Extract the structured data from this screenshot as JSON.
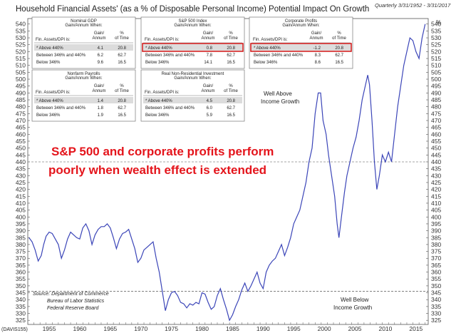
{
  "title": "Household Financial Assets' (as a % of Disposable Personal Income) Potential Impact On Growth",
  "subtitle": "Quarterly 3/31/1952 - 3/31/2017",
  "units_label": "%",
  "footer_tag": "(DAVIS155)",
  "headline": [
    "S&P 500 and corporate profits perform",
    "poorly when wealth effect is extended"
  ],
  "annotation_above": [
    "Well Above",
    "Income Growth"
  ],
  "annotation_below": [
    "Well Below",
    "Income Growth"
  ],
  "source": [
    "Source: Department of Commerce",
    "Bureau of Labor Statistics",
    "Federal Reserve Board"
  ],
  "colors": {
    "line": "#3b45b8",
    "highlight": "#d11414",
    "shade": "#dcdcdc",
    "threshold": "#888888"
  },
  "tables": [
    {
      "title": "Nominal GDP",
      "subtitle": "Gain/Annum When:",
      "col1": "Fin. Assets/DPI is:",
      "col2": "Gain/ Annum",
      "col3": "% of Time",
      "rows": [
        [
          "* Above 440%",
          "4.1",
          "20.8"
        ],
        [
          "Between 346% and 440%",
          "6.2",
          "62.7"
        ],
        [
          "Below 346%",
          "9.6",
          "16.5"
        ]
      ],
      "highlight": false
    },
    {
      "title": "S&P 500 Index",
      "subtitle": "Gain/Annum When:",
      "col1": "Fin. Assets/DPI is:",
      "col2": "Gain/ Annum",
      "col3": "% of Time",
      "rows": [
        [
          "* Above 440%",
          "0.8",
          "20.8"
        ],
        [
          "Between 346% and 440%",
          "7.8",
          "62.7"
        ],
        [
          "Below 346%",
          "14.1",
          "16.5"
        ]
      ],
      "highlight": true
    },
    {
      "title": "Corporate Profits",
      "subtitle": "Gain/Annum When:",
      "col1": "Fin. Assets/DPI is:",
      "col2": "Gain/ Annum",
      "col3": "% of Time",
      "rows": [
        [
          "* Above 440%",
          "-1.2",
          "20.8"
        ],
        [
          "Between 346% and 440%",
          "8.3",
          "62.7"
        ],
        [
          "Below 346%",
          "8.6",
          "16.5"
        ]
      ],
      "highlight": true
    },
    {
      "title": "Nonfarm Payrolls",
      "subtitle": "Gain/Annum When:",
      "col1": "Fin. Assets/DPI is:",
      "col2": "Gain/ Annum",
      "col3": "% of Time",
      "rows": [
        [
          "* Above 440%",
          "1.4",
          "20.8"
        ],
        [
          "Between 346% and 440%",
          "1.8",
          "62.7"
        ],
        [
          "Below 346%",
          "1.9",
          "16.5"
        ]
      ],
      "highlight": false
    },
    {
      "title": "Real Non-Residential Investment",
      "subtitle": "Gain/Annum When:",
      "col1": "Fin. Assets/DPI is:",
      "col2": "Gain/ Annum",
      "col3": "% of Time",
      "rows": [
        [
          "* Above 440%",
          "4.5",
          "20.8"
        ],
        [
          "Between 346% and 440%",
          "6.0",
          "62.7"
        ],
        [
          "Below 346%",
          "5.9",
          "16.5"
        ]
      ],
      "highlight": false
    }
  ],
  "chart_data": {
    "type": "line",
    "title": "Household Financial Assets' (as a % of Disposable Personal Income) Potential Impact On Growth",
    "xlim": [
      1952,
      2017.5
    ],
    "ylim": [
      322,
      544
    ],
    "x_ticks": [
      1955,
      1960,
      1965,
      1970,
      1975,
      1980,
      1985,
      1990,
      1995,
      2000,
      2005,
      2010,
      2015
    ],
    "y_ticks": [
      325,
      330,
      335,
      340,
      345,
      350,
      355,
      360,
      365,
      370,
      375,
      380,
      385,
      390,
      395,
      400,
      405,
      410,
      415,
      420,
      425,
      430,
      435,
      440,
      445,
      450,
      455,
      460,
      465,
      470,
      475,
      480,
      485,
      490,
      495,
      500,
      505,
      510,
      515,
      520,
      525,
      530,
      535,
      540
    ],
    "thresholds": [
      440,
      346
    ],
    "grid": false,
    "series": [
      {
        "points": [
          [
            1952.2,
            385
          ],
          [
            1952.7,
            382
          ],
          [
            1953.2,
            376
          ],
          [
            1953.7,
            368
          ],
          [
            1954.2,
            372
          ],
          [
            1954.6,
            380
          ],
          [
            1955,
            386
          ],
          [
            1955.5,
            389
          ],
          [
            1956,
            388
          ],
          [
            1956.5,
            384
          ],
          [
            1957,
            380
          ],
          [
            1957.5,
            370
          ],
          [
            1958,
            376
          ],
          [
            1958.5,
            384
          ],
          [
            1959,
            389
          ],
          [
            1959.5,
            387
          ],
          [
            1960,
            385
          ],
          [
            1960.5,
            384
          ],
          [
            1961,
            392
          ],
          [
            1961.5,
            395
          ],
          [
            1962,
            390
          ],
          [
            1962.5,
            380
          ],
          [
            1963,
            387
          ],
          [
            1963.5,
            391
          ],
          [
            1964,
            393
          ],
          [
            1964.5,
            393
          ],
          [
            1965,
            395
          ],
          [
            1965.5,
            392
          ],
          [
            1966,
            385
          ],
          [
            1966.5,
            377
          ],
          [
            1967,
            384
          ],
          [
            1967.5,
            388
          ],
          [
            1968,
            389
          ],
          [
            1968.5,
            391
          ],
          [
            1969,
            384
          ],
          [
            1969.5,
            377
          ],
          [
            1970,
            367
          ],
          [
            1970.5,
            370
          ],
          [
            1971,
            376
          ],
          [
            1971.5,
            378
          ],
          [
            1972,
            380
          ],
          [
            1972.5,
            382
          ],
          [
            1973,
            370
          ],
          [
            1973.5,
            360
          ],
          [
            1974,
            346
          ],
          [
            1974.5,
            332
          ],
          [
            1975,
            340
          ],
          [
            1975.5,
            345
          ],
          [
            1976,
            346
          ],
          [
            1976.5,
            343
          ],
          [
            1977,
            338
          ],
          [
            1977.5,
            337
          ],
          [
            1978,
            334
          ],
          [
            1978.5,
            337
          ],
          [
            1979,
            336
          ],
          [
            1979.5,
            338
          ],
          [
            1980,
            337
          ],
          [
            1980.5,
            345
          ],
          [
            1981,
            344
          ],
          [
            1981.5,
            338
          ],
          [
            1982,
            333
          ],
          [
            1982.5,
            335
          ],
          [
            1983,
            343
          ],
          [
            1983.5,
            348
          ],
          [
            1984,
            340
          ],
          [
            1984.5,
            333
          ],
          [
            1985,
            325
          ],
          [
            1985.5,
            329
          ],
          [
            1986,
            335
          ],
          [
            1986.5,
            340
          ],
          [
            1987,
            347
          ],
          [
            1987.5,
            352
          ],
          [
            1988,
            346
          ],
          [
            1988.5,
            350
          ],
          [
            1989,
            355
          ],
          [
            1989.5,
            360
          ],
          [
            1990,
            352
          ],
          [
            1990.5,
            348
          ],
          [
            1991,
            360
          ],
          [
            1991.5,
            365
          ],
          [
            1992,
            368
          ],
          [
            1992.5,
            370
          ],
          [
            1993,
            375
          ],
          [
            1993.5,
            380
          ],
          [
            1994,
            372
          ],
          [
            1994.5,
            378
          ],
          [
            1995,
            385
          ],
          [
            1995.5,
            395
          ],
          [
            1996,
            400
          ],
          [
            1996.5,
            405
          ],
          [
            1997,
            415
          ],
          [
            1997.5,
            425
          ],
          [
            1998,
            440
          ],
          [
            1998.5,
            450
          ],
          [
            1999,
            475
          ],
          [
            1999.5,
            490
          ],
          [
            1999.9,
            490
          ],
          [
            2000.3,
            470
          ],
          [
            2000.8,
            460
          ],
          [
            2001.2,
            445
          ],
          [
            2001.7,
            430
          ],
          [
            2002.2,
            415
          ],
          [
            2002.6,
            395
          ],
          [
            2002.9,
            385
          ],
          [
            2003.3,
            400
          ],
          [
            2003.8,
            418
          ],
          [
            2004.2,
            430
          ],
          [
            2004.7,
            440
          ],
          [
            2005.2,
            450
          ],
          [
            2005.7,
            458
          ],
          [
            2006.2,
            470
          ],
          [
            2006.7,
            485
          ],
          [
            2007.2,
            495
          ],
          [
            2007.6,
            503
          ],
          [
            2007.9,
            496
          ],
          [
            2008.3,
            470
          ],
          [
            2008.7,
            440
          ],
          [
            2009.1,
            420
          ],
          [
            2009.5,
            430
          ],
          [
            2010,
            445
          ],
          [
            2010.5,
            440
          ],
          [
            2011,
            447
          ],
          [
            2011.5,
            440
          ],
          [
            2012,
            460
          ],
          [
            2012.5,
            480
          ],
          [
            2013,
            495
          ],
          [
            2013.5,
            510
          ],
          [
            2014,
            520
          ],
          [
            2014.5,
            530
          ],
          [
            2015,
            528
          ],
          [
            2015.5,
            520
          ],
          [
            2016,
            515
          ],
          [
            2016.5,
            530
          ],
          [
            2017,
            540
          ]
        ]
      }
    ]
  }
}
